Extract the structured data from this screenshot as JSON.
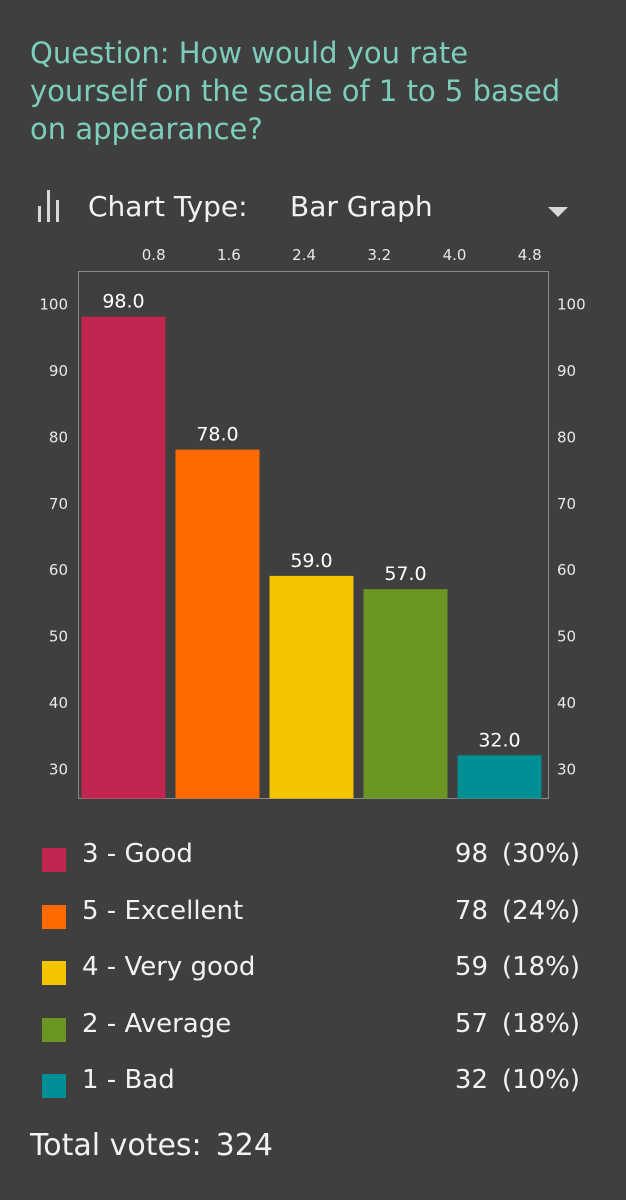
{
  "question": "Question: How would you rate yourself on the scale of 1 to 5 based on appearance?",
  "chart_type": {
    "label": "Chart Type:",
    "value": "Bar Graph",
    "icon": "bar-chart-icon",
    "dropdown_icon": "triangle-down-icon"
  },
  "chart_data": {
    "type": "bar",
    "categories": [
      "3 - Good",
      "5 - Excellent",
      "4 - Very good",
      "2 - Average",
      "1 - Bad"
    ],
    "values": [
      98,
      78,
      59,
      57,
      32
    ],
    "value_labels": [
      "98.0",
      "78.0",
      "59.0",
      "57.0",
      "32.0"
    ],
    "colors": [
      "#c22650",
      "#ff6a00",
      "#f4c400",
      "#6a9621",
      "#008f94"
    ],
    "x_ticks": [
      "0.8",
      "1.6",
      "2.4",
      "3.2",
      "4.0",
      "4.8"
    ],
    "xlim": [
      0,
      5
    ],
    "y_ticks": [
      "100",
      "90",
      "80",
      "70",
      "60",
      "50",
      "40",
      "30"
    ],
    "ylim": [
      25.5,
      104.8
    ],
    "grid": false
  },
  "legend": [
    {
      "label": "3 - Good",
      "count": "98",
      "pct": "(30%)",
      "color": "#c22650"
    },
    {
      "label": "5 - Excellent",
      "count": "78",
      "pct": "(24%)",
      "color": "#ff6a00"
    },
    {
      "label": "4 - Very good",
      "count": "59",
      "pct": "(18%)",
      "color": "#f4c400"
    },
    {
      "label": "2 - Average",
      "count": "57",
      "pct": "(18%)",
      "color": "#6a9621"
    },
    {
      "label": "1 - Bad",
      "count": "32",
      "pct": "(10%)",
      "color": "#008f94"
    }
  ],
  "total": {
    "label": "Total votes:",
    "value": "324"
  }
}
